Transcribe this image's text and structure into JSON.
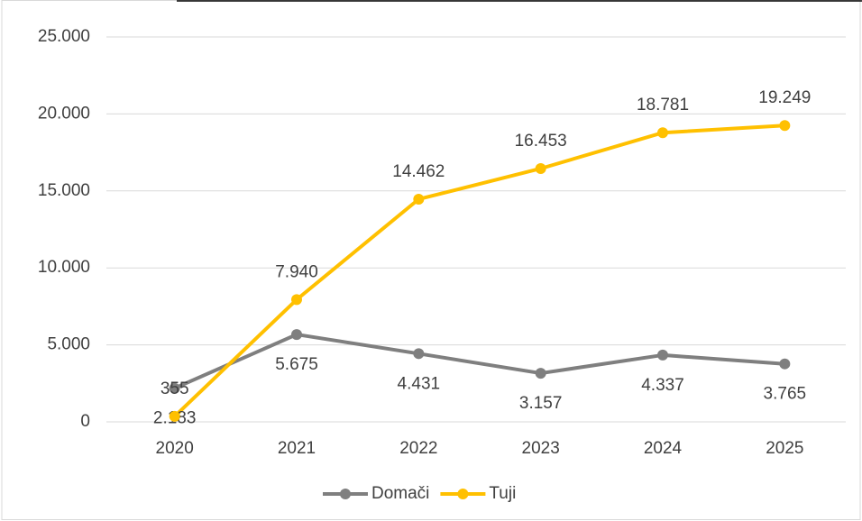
{
  "chart_data": {
    "type": "line",
    "categories": [
      "2020",
      "2021",
      "2022",
      "2023",
      "2024",
      "2025"
    ],
    "series": [
      {
        "name": "Domači",
        "color": "#7f7f7f",
        "values": [
          2183,
          5675,
          4431,
          3157,
          4337,
          3765
        ],
        "value_labels": [
          "2.183",
          "5.675",
          "4.431",
          "3.157",
          "4.337",
          "3.765"
        ]
      },
      {
        "name": "Tuji",
        "color": "#ffc000",
        "values": [
          355,
          7940,
          14462,
          16453,
          18781,
          19249
        ],
        "value_labels": [
          "355",
          "7.940",
          "14.462",
          "16.453",
          "18.781",
          "19.249"
        ]
      }
    ],
    "ylim": [
      0,
      25000
    ],
    "yticks": [
      0,
      {
        "value": 5000,
        "label": "5.000"
      },
      {
        "value": 10000,
        "label": "10.000"
      },
      {
        "value": 15000,
        "label": "15.000"
      },
      {
        "value": 20000,
        "label": "20.000"
      },
      {
        "value": 25000,
        "label": "25.000"
      }
    ],
    "grid": true,
    "legend": "bottom"
  }
}
